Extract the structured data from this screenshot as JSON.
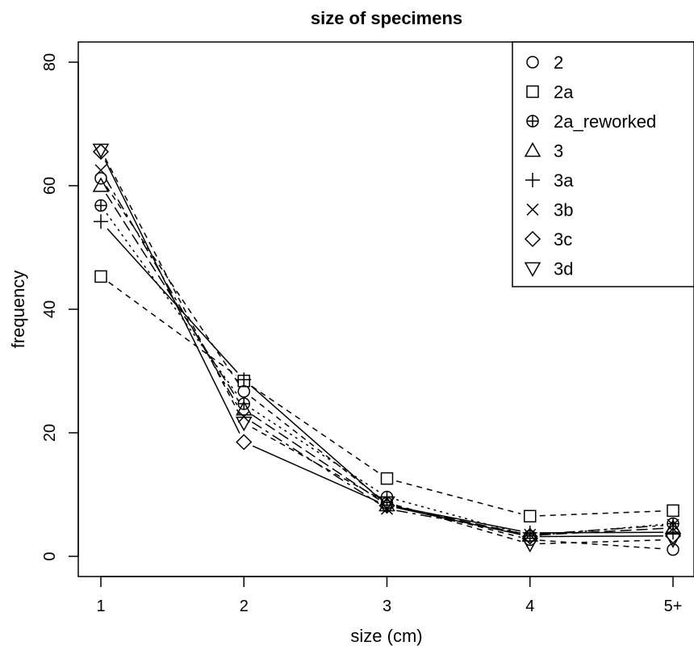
{
  "chart_data": {
    "type": "line",
    "title": "size of specimens",
    "xlabel": "size (cm)",
    "ylabel": "frequency",
    "categories": [
      "1",
      "2",
      "3",
      "4",
      "5+"
    ],
    "ylim": [
      0,
      80
    ],
    "yticks": [
      0,
      20,
      40,
      60,
      80
    ],
    "grid": false,
    "legend_position": "top-right",
    "series": [
      {
        "name": "2",
        "marker": "circle",
        "values": [
          61.2,
          26.7,
          8.6,
          2.7,
          1.1
        ]
      },
      {
        "name": "2a",
        "marker": "square",
        "values": [
          45.3,
          28.4,
          12.6,
          6.5,
          7.4
        ]
      },
      {
        "name": "2a_reworked",
        "marker": "circle-plus",
        "values": [
          56.8,
          24.7,
          9.6,
          3.3,
          5.3
        ]
      },
      {
        "name": "3",
        "marker": "triangle",
        "values": [
          60.0,
          23.8,
          8.3,
          3.4,
          4.6
        ]
      },
      {
        "name": "3a",
        "marker": "plus",
        "values": [
          54.2,
          28.6,
          8.3,
          3.8,
          3.9
        ]
      },
      {
        "name": "3b",
        "marker": "x",
        "values": [
          62.5,
          22.6,
          7.7,
          3.5,
          5.1
        ]
      },
      {
        "name": "3c",
        "marker": "diamond",
        "values": [
          65.5,
          18.5,
          8.2,
          3.2,
          3.3
        ]
      },
      {
        "name": "3d",
        "marker": "triangle-down",
        "values": [
          65.8,
          21.6,
          8.7,
          2.0,
          2.7
        ]
      }
    ]
  }
}
